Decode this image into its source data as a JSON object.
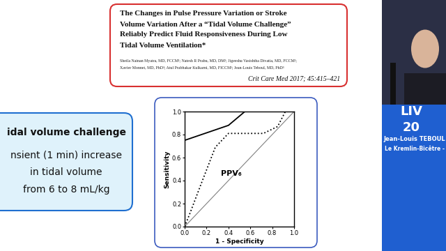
{
  "chart_data": {
    "type": "line",
    "xlabel": "1 - Specificity",
    "ylabel": "Sensitivity",
    "xlim": [
      0.0,
      1.0
    ],
    "ylim": [
      0.0,
      1.0
    ],
    "xticks": [
      {
        "value": 0.0,
        "label": "0.0"
      },
      {
        "value": 0.2,
        "label": "0.2"
      },
      {
        "value": 0.4,
        "label": "0.4"
      },
      {
        "value": 0.6,
        "label": "0.6"
      },
      {
        "value": 0.8,
        "label": "0.8"
      },
      {
        "value": 1.0,
        "label": "1.0"
      }
    ],
    "yticks": [
      {
        "value": 0.0,
        "label": "0.0"
      },
      {
        "value": 0.2,
        "label": "0.2"
      },
      {
        "value": 0.4,
        "label": "0.4"
      },
      {
        "value": 0.6,
        "label": "0.6"
      },
      {
        "value": 0.8,
        "label": "0.8"
      },
      {
        "value": 1.0,
        "label": "1.0"
      }
    ],
    "grid": false,
    "annotations": [
      "PPV₆"
    ],
    "series": [
      {
        "x": [
          0.0,
          1.0
        ],
        "values": [
          0.0,
          1.0
        ],
        "color": "#808080",
        "line_style": "solid"
      },
      {
        "x": [
          0.0,
          0.0,
          0.4,
          0.55,
          1.0
        ],
        "values": [
          0.0,
          0.75,
          0.88,
          1.0,
          1.0
        ],
        "color": "#000000",
        "line_style": "solid"
      },
      {
        "x": [
          0.0,
          0.0,
          1.0
        ],
        "values": [
          0.0,
          1.0,
          1.0
        ],
        "color": "#000000",
        "line_style": "dashed"
      },
      {
        "x": [
          0.0,
          0.05,
          0.15,
          0.28,
          0.4,
          0.55,
          0.72,
          0.85,
          0.92,
          1.0
        ],
        "values": [
          0.0,
          0.12,
          0.37,
          0.69,
          0.81,
          0.81,
          0.81,
          0.87,
          1.0,
          1.0
        ],
        "color": "#000000",
        "line_style": "dotted"
      }
    ]
  },
  "paper": {
    "title_lines": [
      "The Changes in Pulse Pressure Variation or Stroke",
      "Volume Variation After a “Tidal Volume Challenge”",
      "Reliably Predict Fluid Responsiveness During Low",
      "Tidal Volume Ventilation*"
    ],
    "author_lines": [
      "Sheila Nainan Myatra, MD, FCCM¹; Natesh R Prabu, MD, DM²; Jigeeshu Vasishtha Divatia, MD, FCCM¹;",
      "Xavier Monnet, MD, PhD³; Atul Prabhakar Kulkarni, MD, FICCM¹; Jean-Louis Teboul, MD, PhD³"
    ],
    "journal": "Crit Care Med 2017; 45:415–421"
  },
  "text_box": {
    "lines": [
      "idal volume challenge",
      "nsient (1 min) increase",
      "in tidal volume",
      "from 6 to 8 mL/kg"
    ]
  },
  "banner": {
    "logo_lines": [
      "LIV",
      "20"
    ],
    "speaker": "Jean-Louis TEBOUL",
    "affiliation": "Le Kremlin-Bicêtre -"
  }
}
